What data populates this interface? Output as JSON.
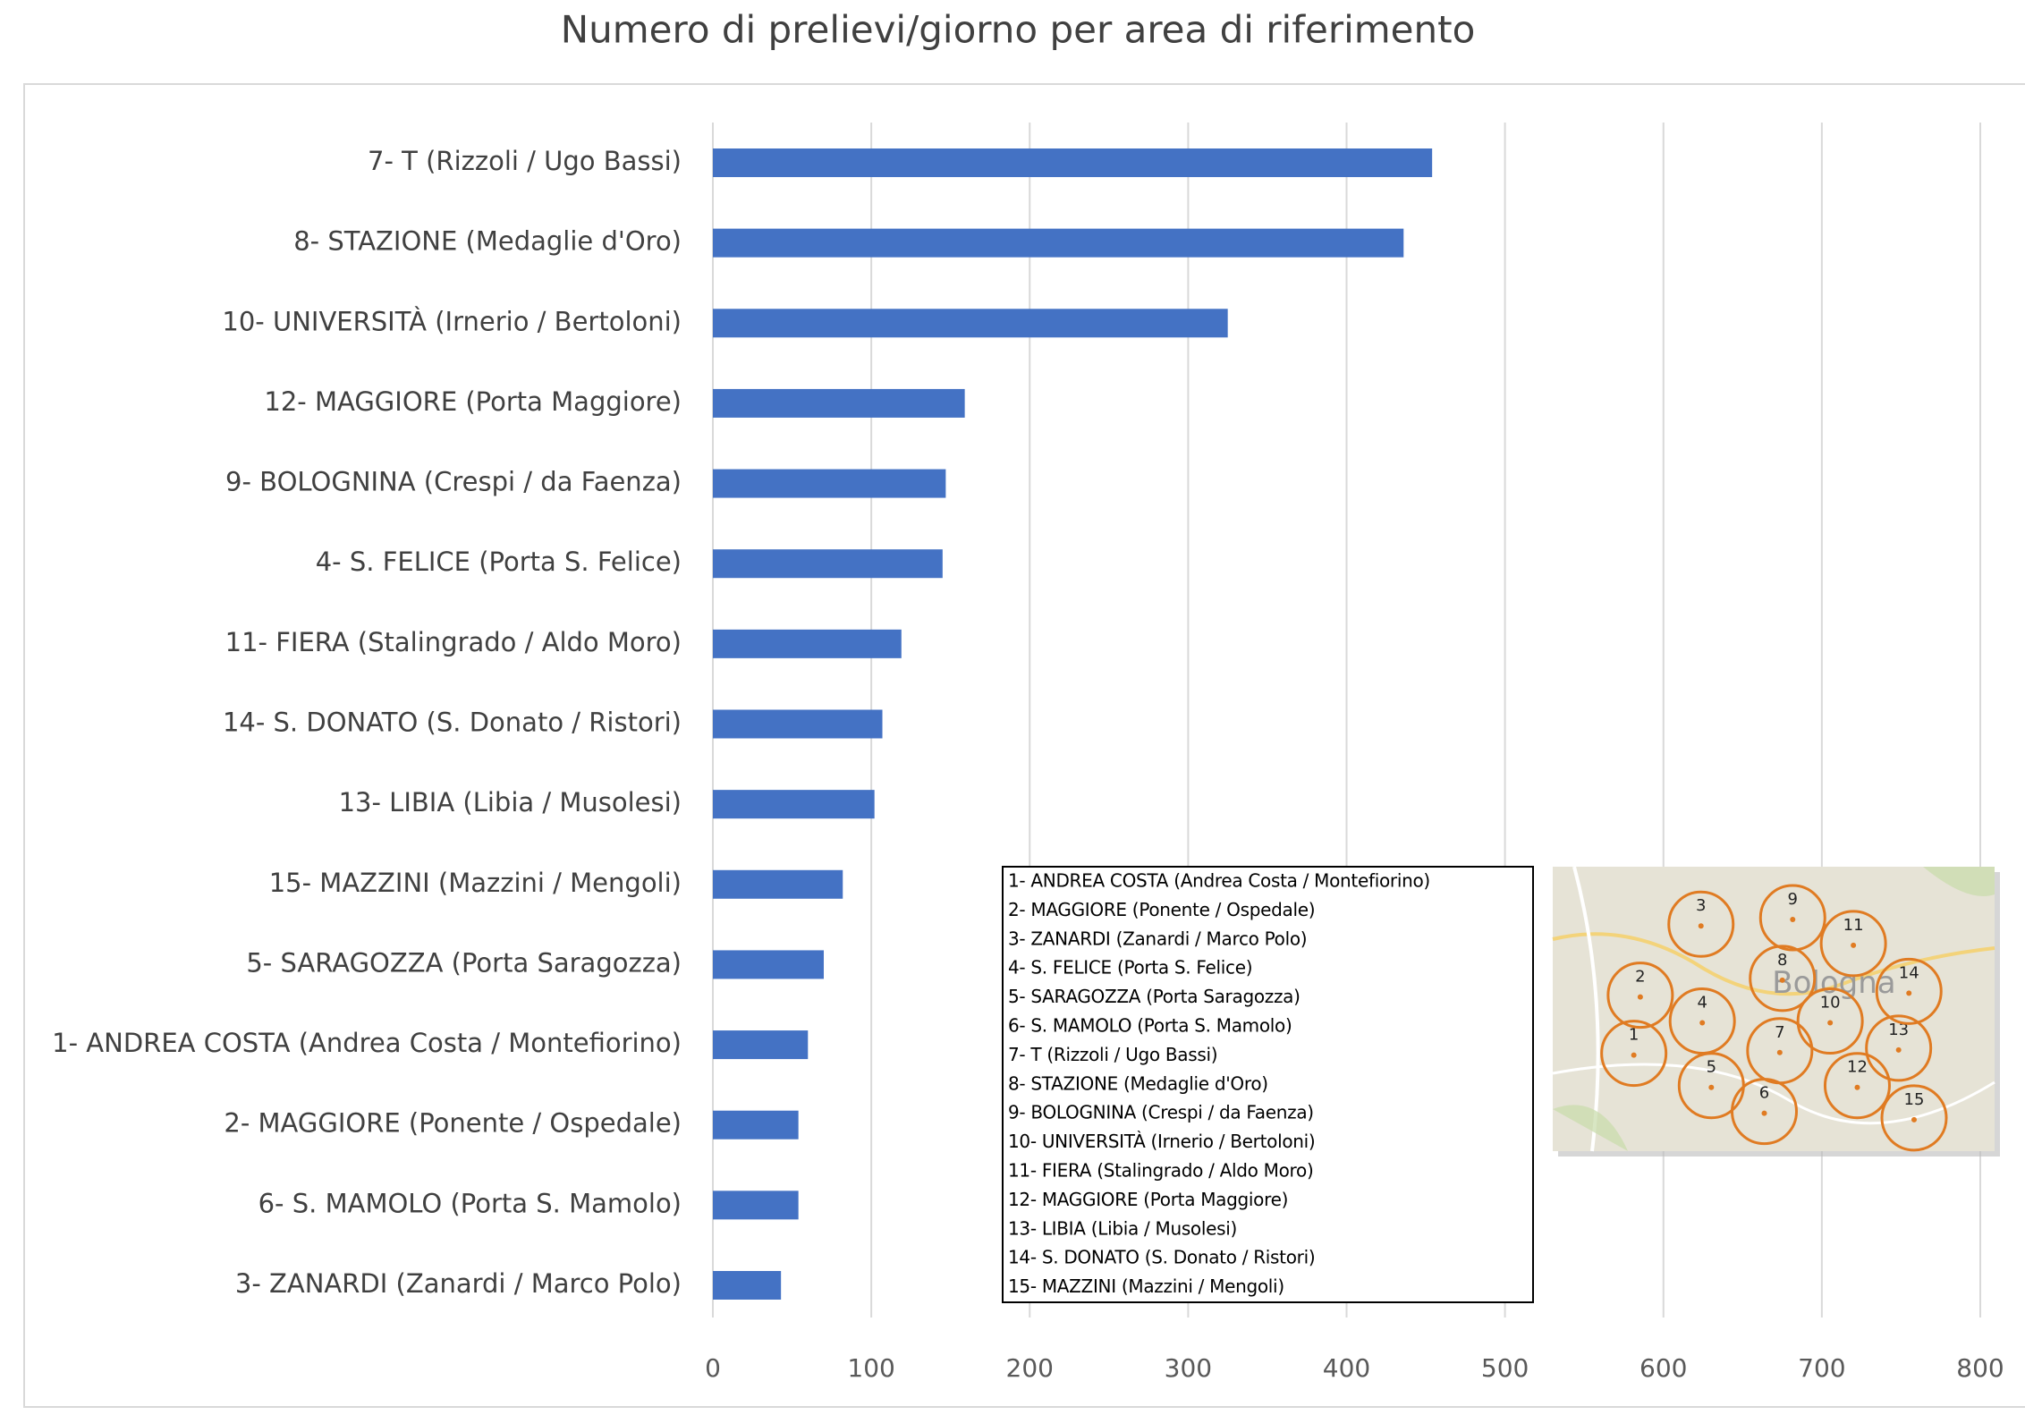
{
  "chart_data": {
    "type": "bar",
    "orientation": "horizontal",
    "title": "Numero di prelievi/giorno per area di riferimento",
    "categories": [
      "7- T (Rizzoli / Ugo Bassi)",
      "8- STAZIONE (Medaglie d'Oro)",
      "10- UNIVERSITÀ (Irnerio / Bertoloni)",
      "12- MAGGIORE (Porta Maggiore)",
      "9- BOLOGNINA (Crespi / da Faenza)",
      "4- S. FELICE (Porta S. Felice)",
      "11- FIERA (Stalingrado / Aldo Moro)",
      "14- S. DONATO (S. Donato / Ristori)",
      "13- LIBIA (Libia / Musolesi)",
      "15- MAZZINI (Mazzini / Mengoli)",
      "5- SARAGOZZA (Porta Saragozza)",
      "1- ANDREA COSTA (Andrea Costa / Montefiorino)",
      "2- MAGGIORE (Ponente / Ospedale)",
      "6- S. MAMOLO (Porta S. Mamolo)",
      "3- ZANARDI (Zanardi / Marco Polo)"
    ],
    "values": [
      454,
      436,
      325,
      159,
      147,
      145,
      119,
      107,
      102,
      82,
      70,
      60,
      54,
      54,
      43
    ],
    "color": "#4472c4",
    "xlim": [
      0,
      800
    ],
    "xticks": [
      0,
      100,
      200,
      300,
      400,
      500,
      600,
      700,
      800
    ],
    "grid": true,
    "legend_lines": [
      "1- ANDREA COSTA (Andrea Costa / Montefiorino)",
      "2- MAGGIORE (Ponente / Ospedale)",
      "3- ZANARDI (Zanardi / Marco Polo)",
      "4- S. FELICE (Porta S. Felice)",
      "5- SARAGOZZA (Porta Saragozza)",
      "6- S. MAMOLO (Porta S. Mamolo)",
      "7- T (Rizzoli / Ugo Bassi)",
      "8- STAZIONE (Medaglie d'Oro)",
      "9- BOLOGNINA (Crespi / da Faenza)",
      "10- UNIVERSITÀ (Irnerio / Bertoloni)",
      "11- FIERA (Stalingrado / Aldo Moro)",
      "12- MAGGIORE (Porta Maggiore)",
      "13- LIBIA (Libia / Musolesi)",
      "14- S. DONATO (S. Donato / Ristori)",
      "15- MAZZINI (Mazzini / Mengoli)"
    ],
    "map_place": "Bologna",
    "map_labels": [
      "1",
      "2",
      "3",
      "4",
      "5",
      "6",
      "7",
      "8",
      "9",
      "10",
      "11",
      "12",
      "13",
      "14",
      "15"
    ]
  }
}
